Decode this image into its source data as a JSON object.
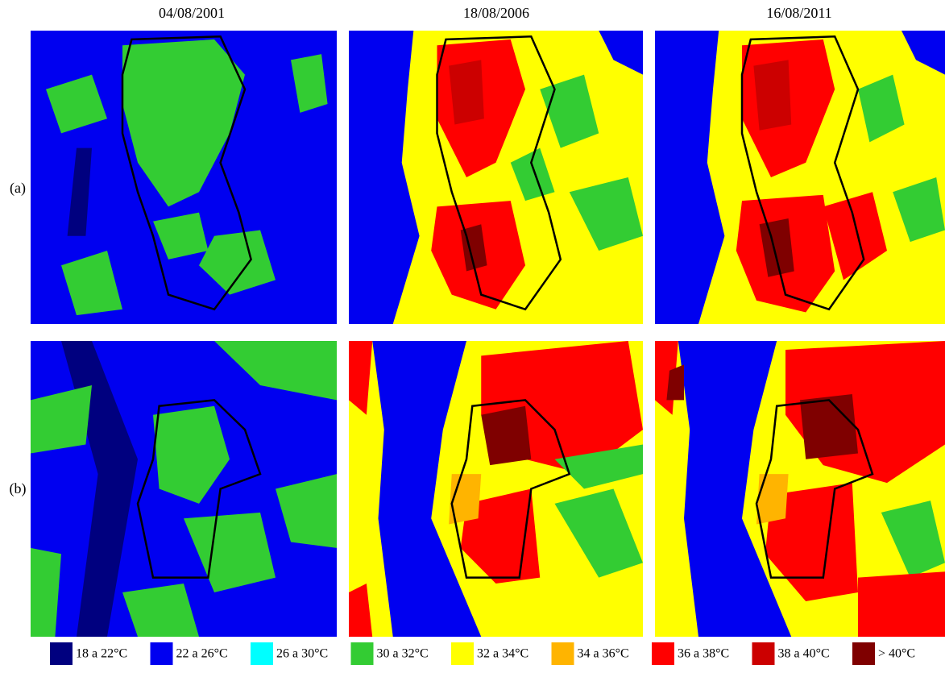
{
  "columns": [
    "04/08/2001",
    "18/08/2006",
    "16/08/2011"
  ],
  "rows": [
    "(a)",
    "(b)"
  ],
  "legend": [
    {
      "label": "18 a 22°C",
      "color": "#00007f"
    },
    {
      "label": "22 a 26°C",
      "color": "#0000f0"
    },
    {
      "label": "26 a 30°C",
      "color": "#00ffff"
    },
    {
      "label": "30 a 32°C",
      "color": "#33cc33"
    },
    {
      "label": "32 a 34°C",
      "color": "#ffff00"
    },
    {
      "label": "34 a 36°C",
      "color": "#ffb400"
    },
    {
      "label": "36 a 38°C",
      "color": "#ff0000"
    },
    {
      "label": "38 a 40°C",
      "color": "#cc0000"
    },
    {
      "label": "> 40°C",
      "color": "#7f0000"
    }
  ]
}
